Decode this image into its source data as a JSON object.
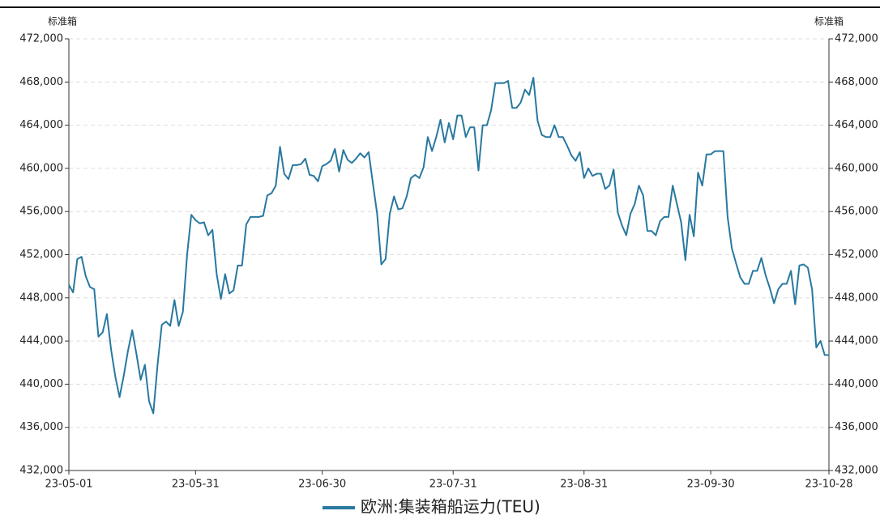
{
  "chart_data": {
    "type": "line",
    "ylabel": "标准箱",
    "y2label": "标准箱",
    "categories": [
      "23-05-01",
      null,
      null,
      null,
      null,
      null,
      null,
      null,
      null,
      null,
      null,
      null,
      null,
      null,
      null,
      null,
      null,
      null,
      null,
      null,
      null,
      null,
      null,
      null,
      null,
      null,
      null,
      null,
      null,
      null,
      "23-05-31",
      null,
      null,
      null,
      null,
      null,
      null,
      null,
      null,
      null,
      null,
      null,
      null,
      null,
      null,
      null,
      null,
      null,
      null,
      null,
      null,
      null,
      null,
      null,
      null,
      null,
      null,
      null,
      null,
      null,
      "23-06-30",
      null,
      null,
      null,
      null,
      null,
      null,
      null,
      null,
      null,
      null,
      null,
      null,
      null,
      null,
      null,
      null,
      null,
      null,
      null,
      null,
      null,
      null,
      null,
      null,
      null,
      null,
      null,
      null,
      null,
      null,
      "23-07-31",
      null,
      null,
      null,
      null,
      null,
      null,
      null,
      null,
      null,
      null,
      null,
      null,
      null,
      null,
      null,
      null,
      null,
      null,
      null,
      null,
      null,
      null,
      null,
      null,
      null,
      null,
      null,
      null,
      null,
      null,
      "23-08-31",
      null,
      null,
      null,
      null,
      null,
      null,
      null,
      null,
      null,
      null,
      null,
      null,
      null,
      null,
      null,
      null,
      null,
      null,
      null,
      null,
      null,
      null,
      null,
      null,
      null,
      null,
      null,
      null,
      null,
      "23-09-30",
      null,
      null,
      null,
      null,
      null,
      null,
      null,
      null,
      null,
      null,
      null,
      null,
      null,
      null,
      null,
      null,
      null,
      null,
      null,
      null,
      null,
      null,
      null,
      null,
      null,
      null,
      null,
      "23-10-28"
    ],
    "series": [
      {
        "name": "欧洲:集装箱船运力(TEU)",
        "color": "#2878a0",
        "values": [
          449200,
          448500,
          451600,
          451800,
          450000,
          449000,
          448800,
          444400,
          444800,
          446500,
          443200,
          440700,
          438800,
          440800,
          443100,
          445000,
          442800,
          440400,
          441800,
          438400,
          437300,
          441800,
          445500,
          445800,
          445400,
          447800,
          445400,
          446700,
          452000,
          455700,
          455200,
          454900,
          455000,
          453800,
          454300,
          450200,
          447900,
          450200,
          448400,
          448700,
          451000,
          451000,
          454800,
          455500,
          455500,
          455500,
          455600,
          457500,
          457700,
          458400,
          462000,
          459500,
          459000,
          460300,
          460300,
          460400,
          460900,
          459400,
          459300,
          458800,
          460200,
          460400,
          460700,
          461800,
          459700,
          461700,
          460800,
          460500,
          460900,
          461400,
          461000,
          461500,
          458600,
          455800,
          451100,
          451600,
          455800,
          457400,
          456200,
          456300,
          457400,
          459100,
          459400,
          459100,
          460100,
          462900,
          461600,
          462900,
          464500,
          462400,
          464200,
          462700,
          464900,
          464900,
          462900,
          463800,
          463800,
          459800,
          464000,
          464000,
          465400,
          467900,
          467900,
          467900,
          468100,
          465600,
          465600,
          466100,
          467300,
          466800,
          468400,
          464400,
          463100,
          462900,
          462900,
          464000,
          462900,
          462900,
          462100,
          461200,
          460700,
          461500,
          459100,
          460000,
          459300,
          459500,
          459500,
          458100,
          458400,
          459900,
          455900,
          454700,
          453800,
          455800,
          456700,
          458400,
          457500,
          454200,
          454200,
          453800,
          455100,
          455500,
          455500,
          458400,
          456700,
          455000,
          451500,
          455700,
          453700,
          459600,
          458400,
          461300,
          461300,
          461600,
          461600,
          461600,
          455500,
          452600,
          451200,
          449900,
          449300,
          449300,
          450500,
          450500,
          451700,
          450100,
          448900,
          447500,
          448800,
          449300,
          449300,
          450500,
          447400,
          451000,
          451100,
          450800,
          448800,
          443400,
          444000,
          442700,
          442700
        ]
      }
    ],
    "ylim": [
      432000,
      472000
    ],
    "yticks": [
      {
        "value": 432000,
        "label": "432,000"
      },
      {
        "value": 436000,
        "label": "436,000"
      },
      {
        "value": 440000,
        "label": "440,000"
      },
      {
        "value": 444000,
        "label": "444,000"
      },
      {
        "value": 448000,
        "label": "448,000"
      },
      {
        "value": 452000,
        "label": "452,000"
      },
      {
        "value": 456000,
        "label": "456,000"
      },
      {
        "value": 460000,
        "label": "460,000"
      },
      {
        "value": 464000,
        "label": "464,000"
      },
      {
        "value": 468000,
        "label": "468,000"
      },
      {
        "value": 472000,
        "label": "472,000"
      }
    ],
    "y2lim": [
      432000,
      472000
    ],
    "y2ticks": [
      {
        "value": 432000,
        "label": "432,000"
      },
      {
        "value": 436000,
        "label": "436,000"
      },
      {
        "value": 440000,
        "label": "440,000"
      },
      {
        "value": 444000,
        "label": "444,000"
      },
      {
        "value": 448000,
        "label": "448,000"
      },
      {
        "value": 452000,
        "label": "452,000"
      },
      {
        "value": 456000,
        "label": "456,000"
      },
      {
        "value": 460000,
        "label": "460,000"
      },
      {
        "value": 464000,
        "label": "464,000"
      },
      {
        "value": 468000,
        "label": "468,000"
      },
      {
        "value": 472000,
        "label": "472,000"
      }
    ],
    "grid": true,
    "legend": "bottom"
  }
}
